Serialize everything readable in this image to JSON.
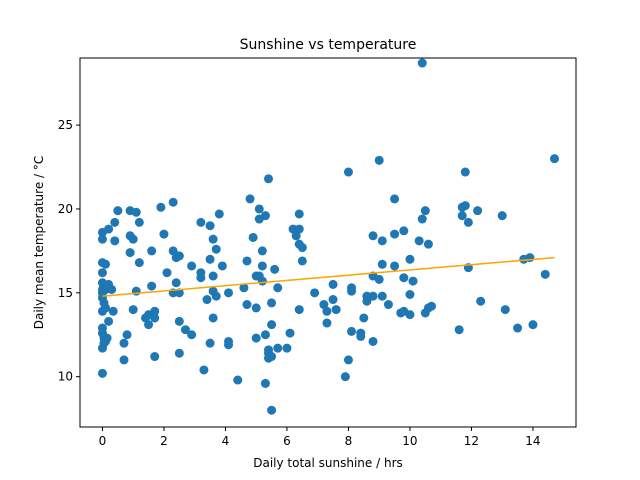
{
  "chart_data": {
    "type": "scatter",
    "title": "Sunshine vs temperature",
    "xlabel": "Daily total sunshine / hrs",
    "ylabel": "Daily mean temperature / °C",
    "xlim": [
      -0.73,
      15.4
    ],
    "ylim": [
      7.0,
      29.0
    ],
    "xticks": [
      "0",
      "2",
      "4",
      "6",
      "8",
      "10",
      "12",
      "14"
    ],
    "yticks": [
      "10",
      "15",
      "20",
      "25"
    ],
    "xtick_values": [
      0,
      2,
      4,
      6,
      8,
      10,
      12,
      14
    ],
    "ytick_values": [
      10,
      15,
      20,
      25
    ],
    "grid": false,
    "colors": {
      "points": "#1f77b4",
      "trend": "#ffa500"
    },
    "trendline": {
      "x": [
        0.0,
        14.7
      ],
      "y": [
        14.8,
        17.1
      ]
    },
    "series": [
      {
        "points": [
          [
            0.0,
            10.2
          ],
          [
            0.0,
            11.7
          ],
          [
            0.05,
            12.0
          ],
          [
            0.05,
            12.3
          ],
          [
            0.0,
            12.6
          ],
          [
            0.0,
            12.9
          ],
          [
            0.0,
            13.9
          ],
          [
            0.05,
            14.4
          ],
          [
            0.0,
            14.7
          ],
          [
            0.0,
            15.0
          ],
          [
            0.0,
            15.2
          ],
          [
            0.0,
            15.6
          ],
          [
            0.0,
            16.2
          ],
          [
            0.0,
            16.8
          ],
          [
            0.0,
            18.2
          ],
          [
            0.0,
            18.6
          ],
          [
            0.1,
            12.1
          ],
          [
            0.1,
            14.1
          ],
          [
            0.1,
            15.2
          ],
          [
            0.1,
            16.7
          ],
          [
            0.15,
            12.3
          ],
          [
            0.2,
            13.3
          ],
          [
            0.2,
            15.5
          ],
          [
            0.2,
            18.8
          ],
          [
            0.3,
            15.2
          ],
          [
            0.35,
            13.9
          ],
          [
            0.4,
            19.2
          ],
          [
            0.4,
            18.1
          ],
          [
            0.5,
            19.9
          ],
          [
            0.7,
            11.0
          ],
          [
            0.7,
            12.0
          ],
          [
            0.8,
            12.5
          ],
          [
            0.9,
            17.4
          ],
          [
            0.9,
            18.4
          ],
          [
            0.9,
            19.9
          ],
          [
            1.0,
            18.2
          ],
          [
            1.0,
            14.0
          ],
          [
            1.1,
            15.1
          ],
          [
            1.1,
            19.8
          ],
          [
            1.2,
            19.2
          ],
          [
            1.2,
            16.8
          ],
          [
            1.4,
            13.5
          ],
          [
            1.5,
            13.7
          ],
          [
            1.5,
            13.1
          ],
          [
            1.6,
            15.4
          ],
          [
            1.6,
            17.5
          ],
          [
            1.7,
            13.9
          ],
          [
            1.7,
            11.2
          ],
          [
            1.7,
            13.5
          ],
          [
            1.9,
            20.1
          ],
          [
            2.0,
            18.5
          ],
          [
            2.1,
            16.2
          ],
          [
            2.3,
            17.5
          ],
          [
            2.3,
            15.0
          ],
          [
            2.3,
            20.4
          ],
          [
            2.4,
            17.1
          ],
          [
            2.4,
            15.6
          ],
          [
            2.5,
            15.0
          ],
          [
            2.5,
            13.3
          ],
          [
            2.5,
            11.4
          ],
          [
            2.5,
            17.2
          ],
          [
            2.7,
            12.8
          ],
          [
            2.9,
            12.5
          ],
          [
            2.9,
            16.6
          ],
          [
            3.2,
            19.2
          ],
          [
            3.2,
            15.9
          ],
          [
            3.2,
            16.2
          ],
          [
            3.3,
            10.4
          ],
          [
            3.4,
            14.6
          ],
          [
            3.5,
            12.0
          ],
          [
            3.5,
            19.0
          ],
          [
            3.5,
            17.0
          ],
          [
            3.6,
            15.1
          ],
          [
            3.6,
            18.2
          ],
          [
            3.6,
            13.5
          ],
          [
            3.6,
            16.0
          ],
          [
            3.7,
            17.6
          ],
          [
            3.7,
            14.8
          ],
          [
            3.8,
            19.7
          ],
          [
            3.9,
            16.6
          ],
          [
            4.1,
            15.0
          ],
          [
            4.1,
            12.1
          ],
          [
            4.1,
            11.9
          ],
          [
            4.4,
            9.8
          ],
          [
            4.6,
            15.3
          ],
          [
            4.7,
            16.9
          ],
          [
            4.7,
            14.3
          ],
          [
            4.8,
            20.6
          ],
          [
            4.9,
            18.3
          ],
          [
            5.0,
            14.1
          ],
          [
            5.0,
            12.3
          ],
          [
            5.0,
            16.0
          ],
          [
            5.1,
            19.4
          ],
          [
            5.1,
            16.0
          ],
          [
            5.1,
            20.0
          ],
          [
            5.2,
            16.6
          ],
          [
            5.2,
            17.5
          ],
          [
            5.2,
            15.7
          ],
          [
            5.3,
            19.6
          ],
          [
            5.3,
            12.5
          ],
          [
            5.3,
            9.6
          ],
          [
            5.4,
            21.8
          ],
          [
            5.4,
            11.4
          ],
          [
            5.4,
            11.1
          ],
          [
            5.4,
            11.6
          ],
          [
            5.5,
            13.1
          ],
          [
            5.5,
            14.4
          ],
          [
            5.5,
            11.2
          ],
          [
            5.5,
            8.0
          ],
          [
            5.6,
            16.4
          ],
          [
            5.7,
            15.3
          ],
          [
            5.7,
            11.7
          ],
          [
            6.0,
            11.7
          ],
          [
            6.1,
            12.6
          ],
          [
            6.2,
            18.8
          ],
          [
            6.3,
            18.4
          ],
          [
            6.4,
            19.7
          ],
          [
            6.4,
            18.8
          ],
          [
            6.4,
            14.0
          ],
          [
            6.4,
            17.9
          ],
          [
            6.5,
            17.7
          ],
          [
            6.5,
            16.9
          ],
          [
            6.9,
            15.0
          ],
          [
            7.2,
            14.3
          ],
          [
            7.3,
            13.9
          ],
          [
            7.3,
            13.2
          ],
          [
            7.5,
            14.6
          ],
          [
            7.5,
            15.5
          ],
          [
            7.6,
            14.0
          ],
          [
            7.9,
            10.0
          ],
          [
            8.0,
            11.0
          ],
          [
            8.0,
            22.2
          ],
          [
            8.1,
            15.3
          ],
          [
            8.1,
            15.1
          ],
          [
            8.1,
            12.7
          ],
          [
            8.4,
            12.6
          ],
          [
            8.4,
            12.4
          ],
          [
            8.5,
            13.5
          ],
          [
            8.6,
            14.8
          ],
          [
            8.6,
            14.5
          ],
          [
            8.8,
            18.4
          ],
          [
            8.8,
            16.0
          ],
          [
            8.8,
            12.1
          ],
          [
            8.8,
            14.8
          ],
          [
            9.0,
            15.8
          ],
          [
            9.0,
            22.9
          ],
          [
            9.1,
            18.1
          ],
          [
            9.1,
            16.7
          ],
          [
            9.1,
            14.8
          ],
          [
            9.3,
            14.3
          ],
          [
            9.5,
            20.6
          ],
          [
            9.5,
            18.5
          ],
          [
            9.5,
            16.6
          ],
          [
            9.7,
            13.8
          ],
          [
            9.8,
            18.7
          ],
          [
            9.8,
            13.9
          ],
          [
            9.8,
            15.9
          ],
          [
            10.0,
            17.0
          ],
          [
            10.0,
            14.9
          ],
          [
            10.0,
            13.7
          ],
          [
            10.1,
            15.7
          ],
          [
            10.3,
            18.1
          ],
          [
            10.4,
            28.7
          ],
          [
            10.4,
            19.4
          ],
          [
            10.5,
            13.8
          ],
          [
            10.5,
            19.9
          ],
          [
            10.6,
            14.1
          ],
          [
            10.6,
            17.9
          ],
          [
            10.7,
            14.2
          ],
          [
            11.6,
            12.8
          ],
          [
            11.7,
            19.6
          ],
          [
            11.7,
            20.1
          ],
          [
            11.8,
            20.2
          ],
          [
            11.8,
            22.2
          ],
          [
            11.9,
            16.5
          ],
          [
            11.9,
            19.2
          ],
          [
            12.2,
            19.9
          ],
          [
            12.3,
            14.5
          ],
          [
            13.0,
            19.6
          ],
          [
            13.1,
            14.0
          ],
          [
            13.5,
            12.9
          ],
          [
            13.7,
            17.0
          ],
          [
            13.9,
            17.1
          ],
          [
            14.0,
            13.1
          ],
          [
            14.4,
            16.1
          ],
          [
            14.7,
            23.0
          ]
        ]
      }
    ]
  }
}
